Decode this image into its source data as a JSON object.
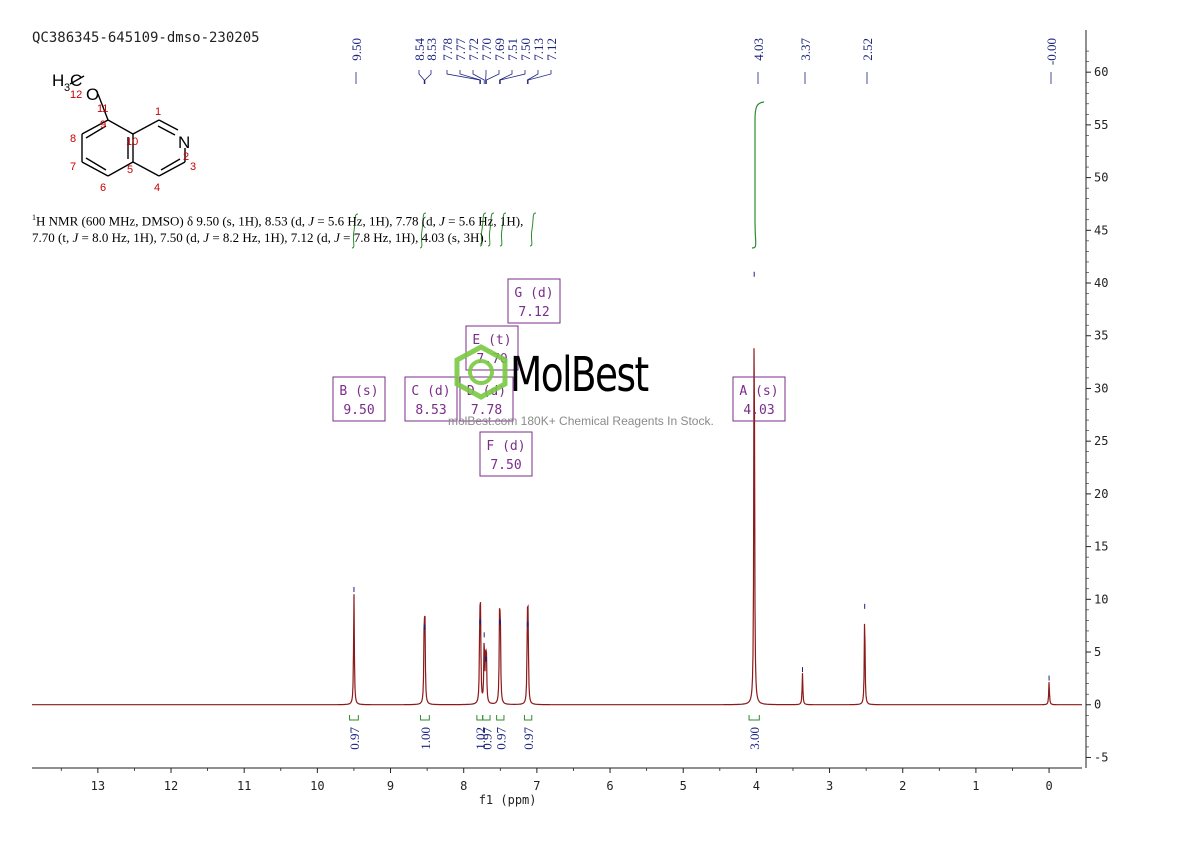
{
  "sample_id": "QC386345-645109-dmso-230205",
  "nmr_text": {
    "line1_pre": "H NMR (600 MHz, DMSO) δ 9.50 (s, 1H), 8.53 (d, ",
    "sup": "1",
    "line1_mid": " = 5.6 Hz, 1H), 7.78 (d, ",
    "line1_end": " = 5.6 Hz, 1H),",
    "line2_a": "7.70 (t, ",
    "line2_b": " = 8.0 Hz, 1H), 7.50 (d, ",
    "line2_c": " = 8.2 Hz, 1H), 7.12 (d, ",
    "line2_d": " = 7.8 Hz, 1H), 4.03 (s, 3H).",
    "j": "J"
  },
  "watermark": {
    "logo": "MolBest",
    "sub": "molBest.com 180K+ Chemical Reagents In Stock."
  },
  "molecule": {
    "methyl_h": "H",
    "methyl_3": "3",
    "methyl_c": "C",
    "oxygen": "O",
    "nitrogen": "N",
    "numbers": [
      "1",
      "2",
      "3",
      "4",
      "5",
      "6",
      "7",
      "8",
      "9",
      "10",
      "11",
      "12"
    ]
  },
  "colors": {
    "spectrum": "#8b1a1a",
    "peak_label": "#1a237e",
    "integral": "#2e8b2e",
    "box": "#7b2d8b",
    "atom_number": "#cc0000",
    "axis": "#222222"
  },
  "chart_data": {
    "type": "line",
    "xlabel": "f1 (ppm)",
    "ylabel": "",
    "x_axis_reversed": true,
    "xlim": [
      13.9,
      -0.45
    ],
    "ylim": [
      -6,
      64
    ],
    "x_ticks": [
      13,
      12,
      11,
      10,
      9,
      8,
      7,
      6,
      5,
      4,
      3,
      2,
      1,
      0
    ],
    "y_ticks": [
      60,
      55,
      50,
      45,
      40,
      35,
      30,
      25,
      20,
      15,
      10,
      5,
      0,
      -5
    ],
    "peaks": [
      {
        "ppm": 9.5,
        "height": 10.6
      },
      {
        "ppm": 8.54,
        "height": 7.0
      },
      {
        "ppm": 8.53,
        "height": 7.0
      },
      {
        "ppm": 7.78,
        "height": 7.5
      },
      {
        "ppm": 7.77,
        "height": 7.5
      },
      {
        "ppm": 7.72,
        "height": 6.3
      },
      {
        "ppm": 7.7,
        "height": 4.0
      },
      {
        "ppm": 7.69,
        "height": 4.0
      },
      {
        "ppm": 7.51,
        "height": 7.5
      },
      {
        "ppm": 7.5,
        "height": 7.5
      },
      {
        "ppm": 7.13,
        "height": 7.3
      },
      {
        "ppm": 7.12,
        "height": 7.3
      },
      {
        "ppm": 4.03,
        "height": 40.5
      },
      {
        "ppm": 3.37,
        "height": 3.0
      },
      {
        "ppm": 2.52,
        "height": 9.0
      },
      {
        "ppm": 0.0,
        "height": 2.2
      }
    ],
    "peak_labels": [
      "9.50",
      "8.54",
      "8.53",
      "7.78",
      "7.77",
      "7.72",
      "7.70",
      "7.69",
      "7.51",
      "7.50",
      "7.13",
      "7.12",
      "4.03",
      "3.37",
      "2.52",
      "-0.00"
    ],
    "integrals": [
      {
        "from": 9.56,
        "to": 9.44,
        "value": "0.97"
      },
      {
        "from": 8.59,
        "to": 8.47,
        "value": "1.00"
      },
      {
        "from": 7.82,
        "to": 7.74,
        "value": "1.02"
      },
      {
        "from": 7.74,
        "to": 7.64,
        "value": "0.97"
      },
      {
        "from": 7.55,
        "to": 7.45,
        "value": "0.97"
      },
      {
        "from": 7.17,
        "to": 7.07,
        "value": "0.97"
      },
      {
        "from": 4.1,
        "to": 3.96,
        "value": "3.00"
      }
    ],
    "multiplets": [
      {
        "letter": "B",
        "mult": "(s)",
        "shift": "9.50"
      },
      {
        "letter": "C",
        "mult": "(d)",
        "shift": "8.53"
      },
      {
        "letter": "D",
        "mult": "(d)",
        "shift": "7.78"
      },
      {
        "letter": "E",
        "mult": "(t)",
        "shift": "7.70"
      },
      {
        "letter": "G",
        "mult": "(d)",
        "shift": "7.12"
      },
      {
        "letter": "F",
        "mult": "(d)",
        "shift": "7.50"
      },
      {
        "letter": "A",
        "mult": "(s)",
        "shift": "4.03"
      }
    ]
  }
}
